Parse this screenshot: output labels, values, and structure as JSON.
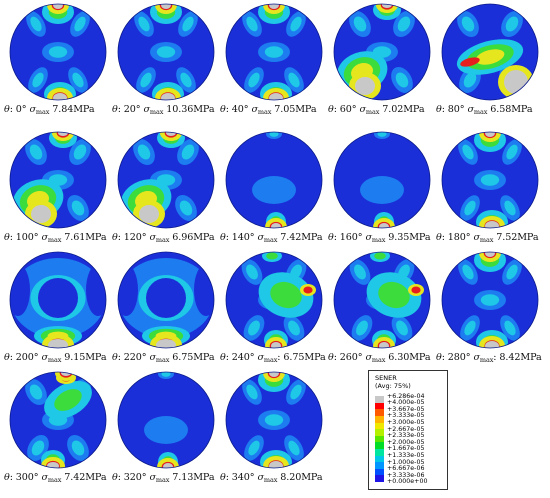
{
  "panels": [
    {
      "theta": "0°",
      "colon": "",
      "smax": "7.84MPa",
      "variant": "top-bottom"
    },
    {
      "theta": "20°",
      "colon": "",
      "smax": "10.36MPa",
      "variant": "top-bottom"
    },
    {
      "theta": "40°",
      "colon": "",
      "smax": "7.05MPa",
      "variant": "top-bottom"
    },
    {
      "theta": "60°",
      "colon": "",
      "smax": "7.02MPa",
      "variant": "lower-left"
    },
    {
      "theta": "80°",
      "colon": "",
      "smax": "6.58MPa",
      "variant": "lower-right"
    },
    {
      "theta": "100°",
      "colon": "",
      "smax": "7.61MPa",
      "variant": "lower-left"
    },
    {
      "theta": "120°",
      "colon": "",
      "smax": "6.96MPa",
      "variant": "lower-left"
    },
    {
      "theta": "140°",
      "colon": "",
      "smax": "7.42MPa",
      "variant": "bottom-only"
    },
    {
      "theta": "160°",
      "colon": "",
      "smax": "9.35MPa",
      "variant": "bottom-only"
    },
    {
      "theta": "180°",
      "colon": "",
      "smax": "7.52MPa",
      "variant": "top-bottom"
    },
    {
      "theta": "200°",
      "colon": "",
      "smax": "9.15MPa",
      "variant": "smooth"
    },
    {
      "theta": "220°",
      "colon": "",
      "smax": "6.75MPa",
      "variant": "smooth"
    },
    {
      "theta": "240°",
      "colon": ":",
      "smax": "6.75MPa",
      "variant": "right-side"
    },
    {
      "theta": "260°",
      "colon": "",
      "smax": "6.30MPa",
      "variant": "right-side"
    },
    {
      "theta": "280°",
      "colon": ":",
      "smax": "8.42MPa",
      "variant": "top-bottom"
    },
    {
      "theta": "300°",
      "colon": "",
      "smax": "7.42MPa",
      "variant": "top-right"
    },
    {
      "theta": "320°",
      "colon": "",
      "smax": "7.13MPa",
      "variant": "bottom-only"
    },
    {
      "theta": "340°",
      "colon": "",
      "smax": "8.20MPa",
      "variant": "top-bottom"
    }
  ],
  "labels": {
    "theta_symbol": "θ",
    "sigma_symbol": "σ",
    "sigma_subscript": "max",
    "colon": ":"
  },
  "legend": {
    "title": "SENER",
    "subtitle": "(Avg: 75%)",
    "levels": [
      "+6.286e-04",
      "+4.000e-05",
      "+3.667e-05",
      "+3.333e-05",
      "+3.000e-05",
      "+2.667e-05",
      "+2.333e-05",
      "+2.000e-05",
      "+1.667e-05",
      "+1.333e-05",
      "+1.000e-05",
      "+6.667e-06",
      "+3.333e-06",
      "+0.000e+00"
    ],
    "colors": [
      "#c8c8c8",
      "#ff0000",
      "#ff5a00",
      "#ffb400",
      "#f0e800",
      "#b4f000",
      "#5ae600",
      "#00dc28",
      "#00e6a0",
      "#00c8e6",
      "#0096ff",
      "#0050ff",
      "#1e14e6"
    ]
  },
  "colors": {
    "base_blue": "#1b2fd8",
    "mid_blue": "#1c7cf0",
    "cyan": "#1ec8e6",
    "green": "#3cdc3c",
    "yellow": "#e6e61e",
    "red": "#e61e1e",
    "gray": "#c8c8c8"
  }
}
